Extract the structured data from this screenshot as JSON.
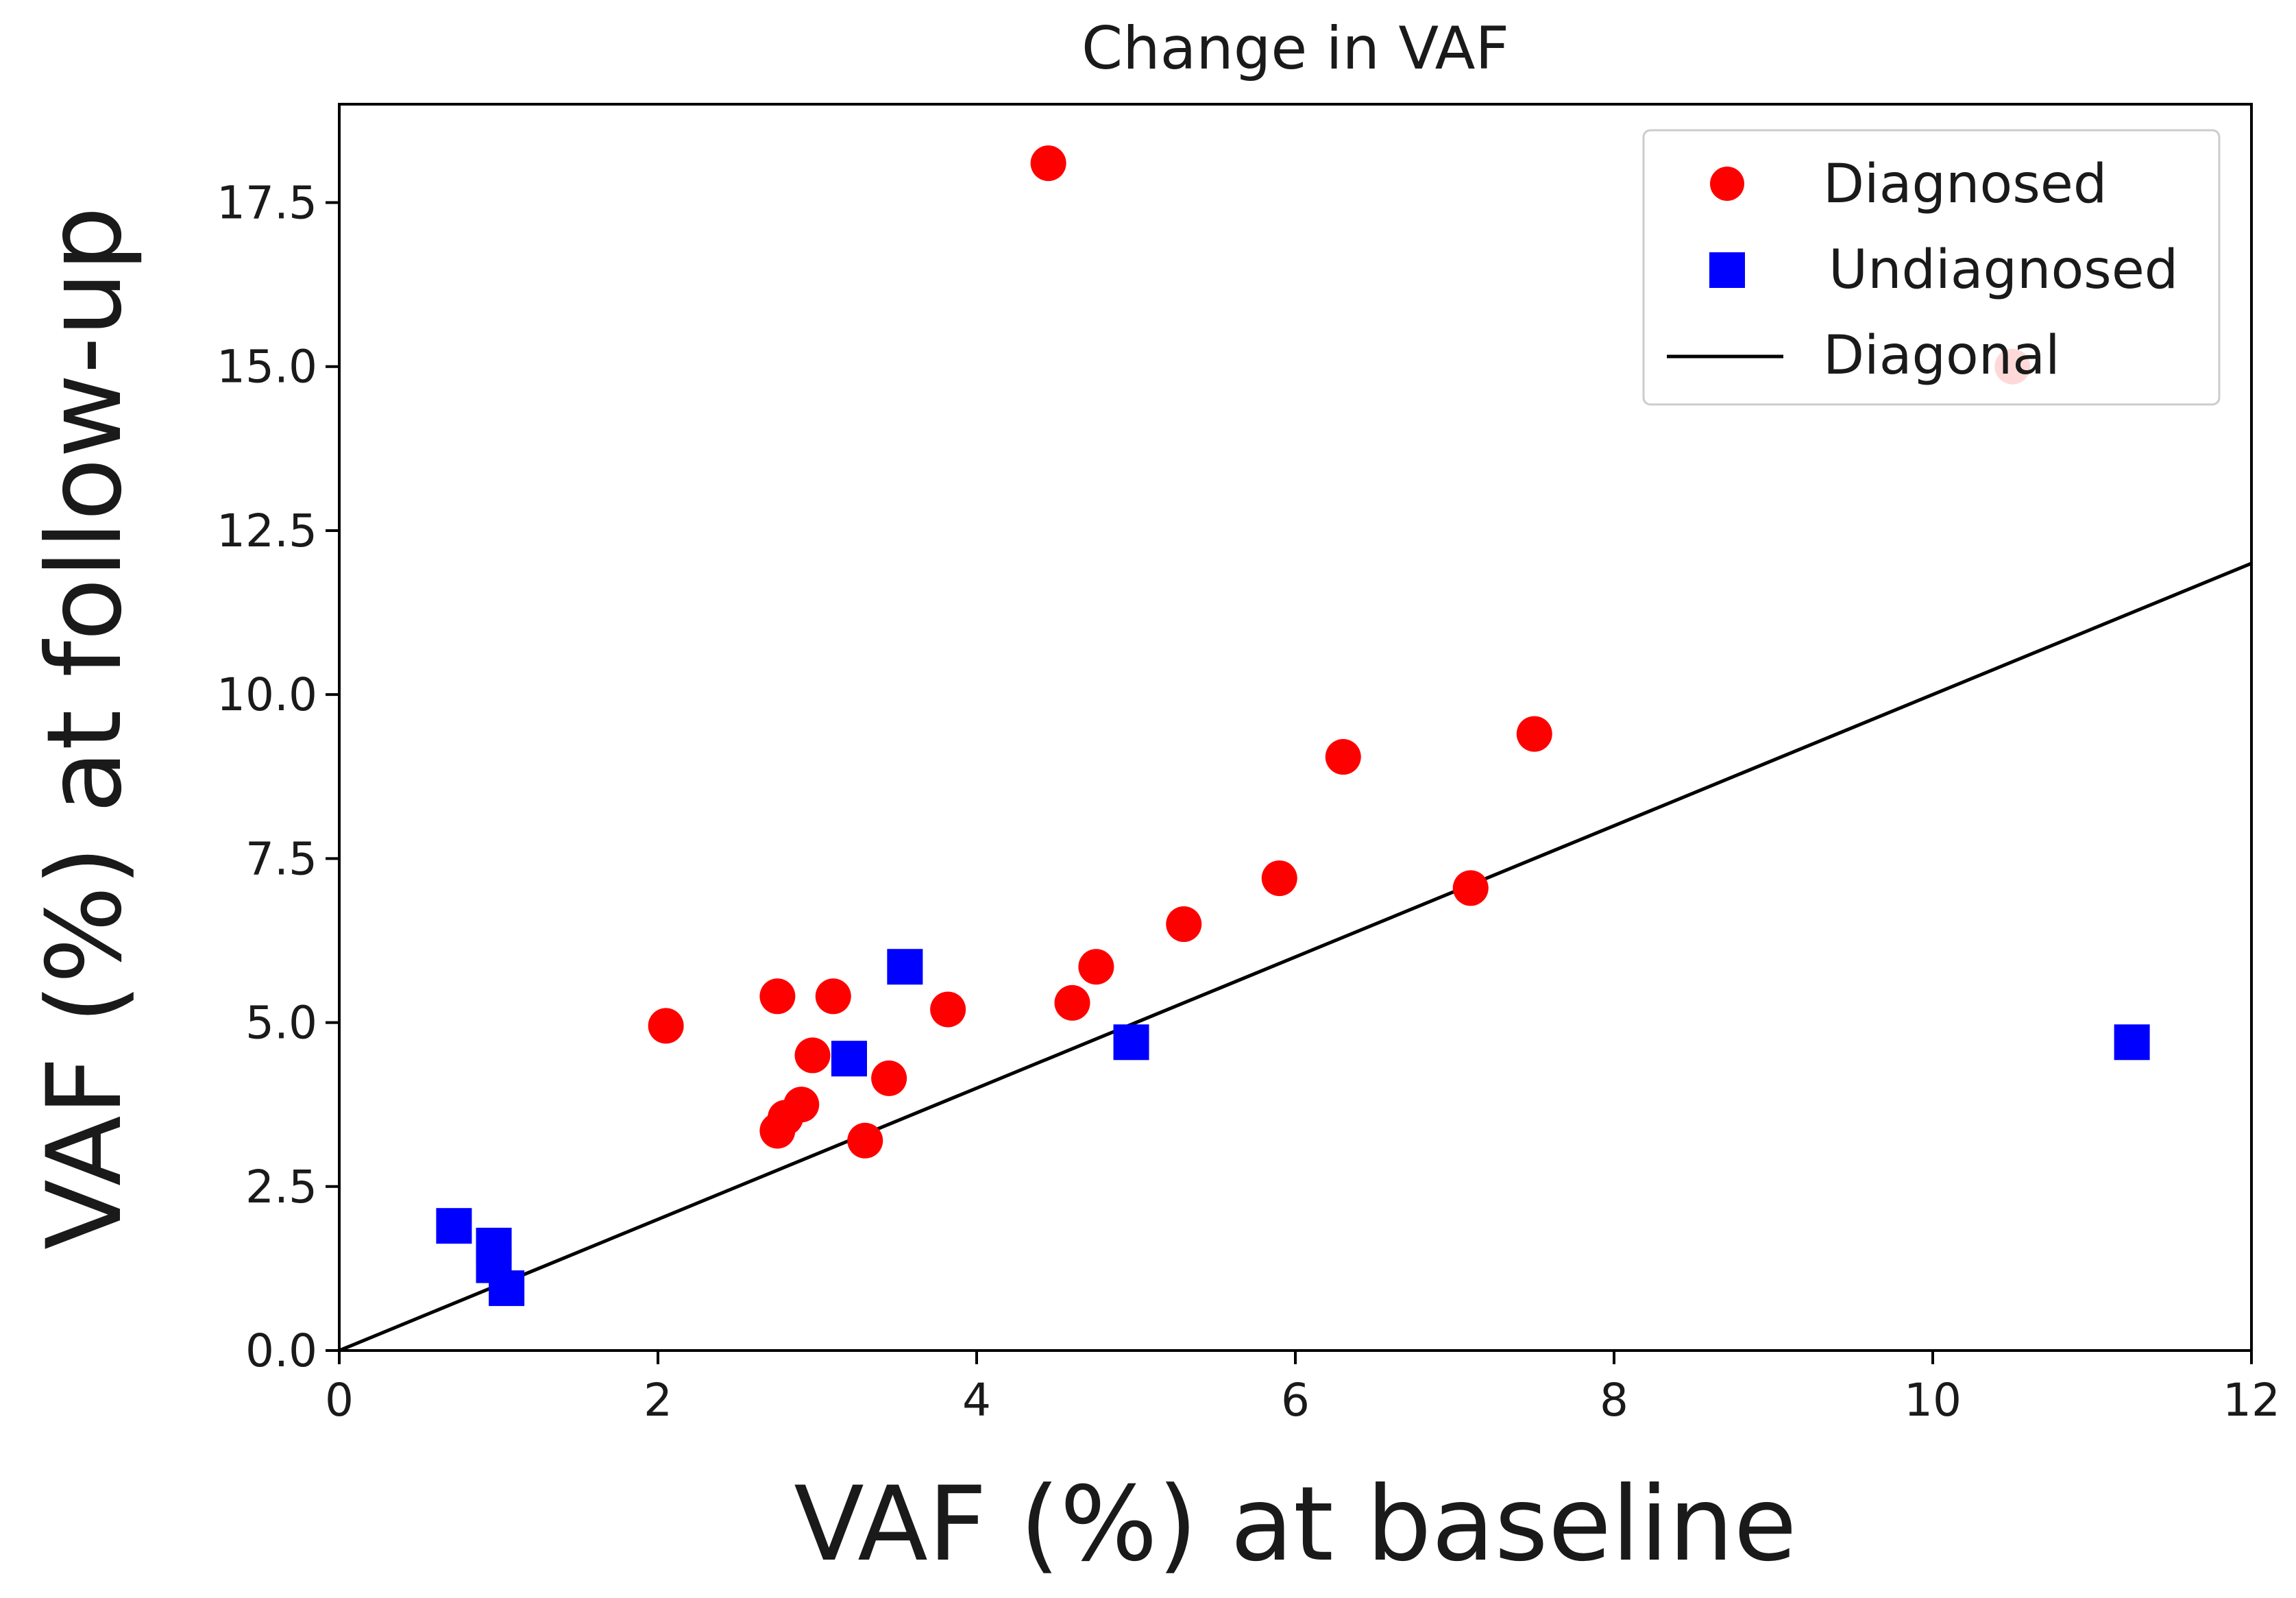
{
  "chart_data": {
    "type": "scatter",
    "title": "Change in VAF",
    "xlabel": "VAF (%) at baseline",
    "ylabel": "VAF (%) at follow-up",
    "xlim": [
      0,
      12
    ],
    "ylim": [
      0,
      19
    ],
    "xticks": [
      0,
      2,
      4,
      6,
      8,
      10,
      12
    ],
    "xtick_labels": [
      "0",
      "2",
      "4",
      "6",
      "8",
      "10",
      "12"
    ],
    "yticks": [
      0,
      2.5,
      5,
      7.5,
      10,
      12.5,
      15,
      17.5
    ],
    "ytick_labels": [
      "0.0",
      "2.5",
      "5.0",
      "7.5",
      "10.0",
      "12.5",
      "15.0",
      "17.5"
    ],
    "grid": false,
    "legend_position": "top-right",
    "series": [
      {
        "name": "Diagnosed",
        "marker": "circle",
        "color": "#ff0000",
        "points": [
          [
            4.45,
            18.1
          ],
          [
            10.5,
            15.0
          ],
          [
            7.5,
            9.4
          ],
          [
            6.3,
            9.05
          ],
          [
            5.9,
            7.2
          ],
          [
            7.1,
            7.05
          ],
          [
            5.3,
            6.5
          ],
          [
            4.75,
            5.85
          ],
          [
            4.6,
            5.3
          ],
          [
            3.82,
            5.2
          ],
          [
            3.1,
            5.4
          ],
          [
            2.75,
            5.4
          ],
          [
            2.05,
            4.95
          ],
          [
            2.97,
            4.5
          ],
          [
            3.45,
            4.15
          ],
          [
            2.9,
            3.75
          ],
          [
            2.8,
            3.55
          ],
          [
            2.75,
            3.35
          ],
          [
            3.3,
            3.2
          ]
        ]
      },
      {
        "name": "Undiagnosed",
        "marker": "square",
        "color": "#0000ff",
        "points": [
          [
            3.55,
            5.85
          ],
          [
            3.2,
            4.45
          ],
          [
            4.97,
            4.7
          ],
          [
            11.25,
            4.7
          ],
          [
            0.72,
            1.9
          ],
          [
            0.97,
            1.6
          ],
          [
            0.97,
            1.3
          ],
          [
            1.05,
            0.95
          ]
        ]
      },
      {
        "name": "Diagonal",
        "type": "line",
        "color": "#000000",
        "points": [
          [
            0,
            0
          ],
          [
            12,
            12
          ]
        ]
      }
    ]
  }
}
